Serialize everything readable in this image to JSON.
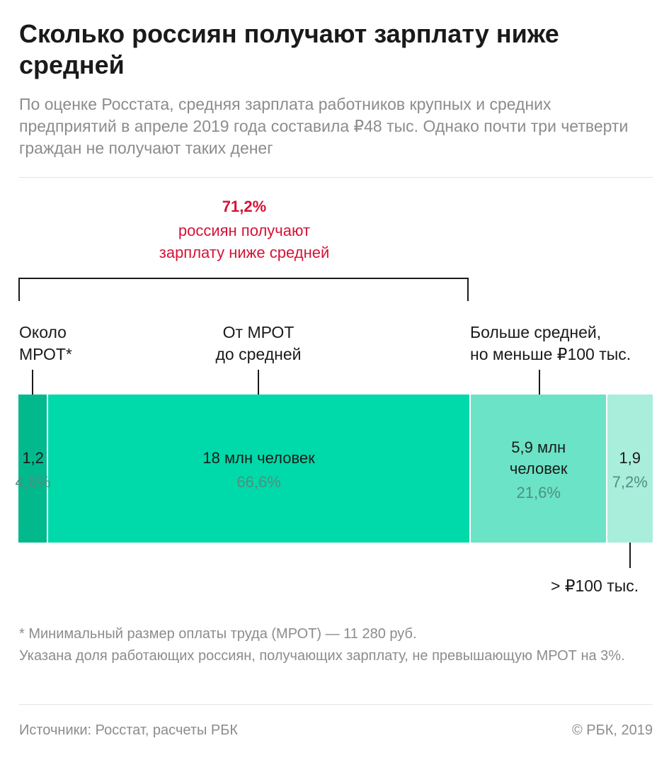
{
  "header": {
    "title": "Сколько россиян получают зарплату ниже средней",
    "subtitle": "По оценке Росстата, средняя зарплата работников крупных и средних предприятий в апреле 2019 года составила ₽48 тыс. Однако почти три четверти граждан не получают таких денег"
  },
  "highlight": {
    "percent": "71,2%",
    "text": "россиян получают\nзарплату ниже средней",
    "color": "#d51336"
  },
  "labels": {
    "mrot": "Около\nМРОТ*",
    "to_avg": "От МРОТ\nдо средней",
    "above_avg": "Больше средней,\nно меньше ₽100 тыс.",
    "over100": "> ₽100 тыс."
  },
  "chart_data": {
    "type": "bar",
    "orientation": "horizontal-stacked",
    "unit": "млн человек",
    "categories": [
      "Около МРОТ*",
      "От МРОТ до средней",
      "Больше средней, но меньше ₽100 тыс.",
      "> ₽100 тыс."
    ],
    "values": [
      1.2,
      18,
      5.9,
      1.9
    ],
    "shares_percent": [
      4.6,
      66.6,
      21.6,
      7.2
    ],
    "value_labels": [
      "1,2",
      "18 млн человек",
      "5,9 млн\nчеловек",
      "1,9"
    ],
    "share_labels": [
      "4,6%",
      "66,6%",
      "21,6%",
      "7,2%"
    ],
    "colors": [
      "#02b98d",
      "#00d9a9",
      "#6be3c6",
      "#a8eedb"
    ]
  },
  "notes": {
    "line1": "* Минимальный размер оплаты труда (МРОТ) — 11 280 руб.",
    "line2": "Указана доля работающих россиян, получающих зарплату, не превышающую МРОТ на 3%."
  },
  "footer": {
    "source": "Источники: Росстат, расчеты РБК",
    "copyright": "© РБК, 2019"
  }
}
